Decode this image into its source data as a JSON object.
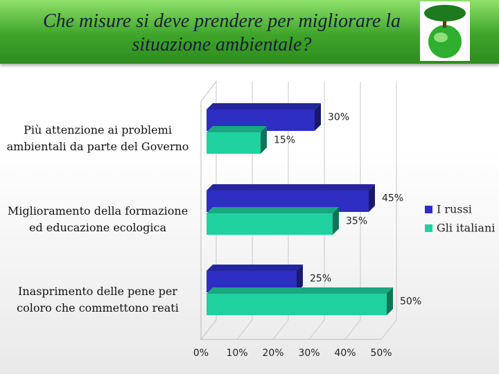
{
  "chart_data": {
    "type": "bar3d-horizontal",
    "title": "Che misure si deve prendere per migliorare la situazione ambientale?",
    "categories": [
      "Più attenzione ai problemi ambientali da parte del Governo",
      "Miglioramento della formazione ed educazione ecologica",
      "Inasprimento delle pene per coloro che commettono reati"
    ],
    "series": [
      {
        "name": "I russi",
        "color": "#2e2ec4",
        "values": [
          30,
          45,
          25
        ],
        "value_labels": [
          "30%",
          "45%",
          "25%"
        ]
      },
      {
        "name": "Gli italiani",
        "color": "#1fd19f",
        "values": [
          15,
          35,
          50
        ],
        "value_labels": [
          "15%",
          "35%",
          "50%"
        ]
      }
    ],
    "xlim": [
      0,
      50
    ],
    "xticks": [
      {
        "value": 0,
        "label": "0%"
      },
      {
        "value": 10,
        "label": "10%"
      },
      {
        "value": 20,
        "label": "20%"
      },
      {
        "value": 30,
        "label": "30%"
      },
      {
        "value": 40,
        "label": "40%"
      },
      {
        "value": 50,
        "label": "50%"
      }
    ],
    "grid": true,
    "legend": "right"
  }
}
